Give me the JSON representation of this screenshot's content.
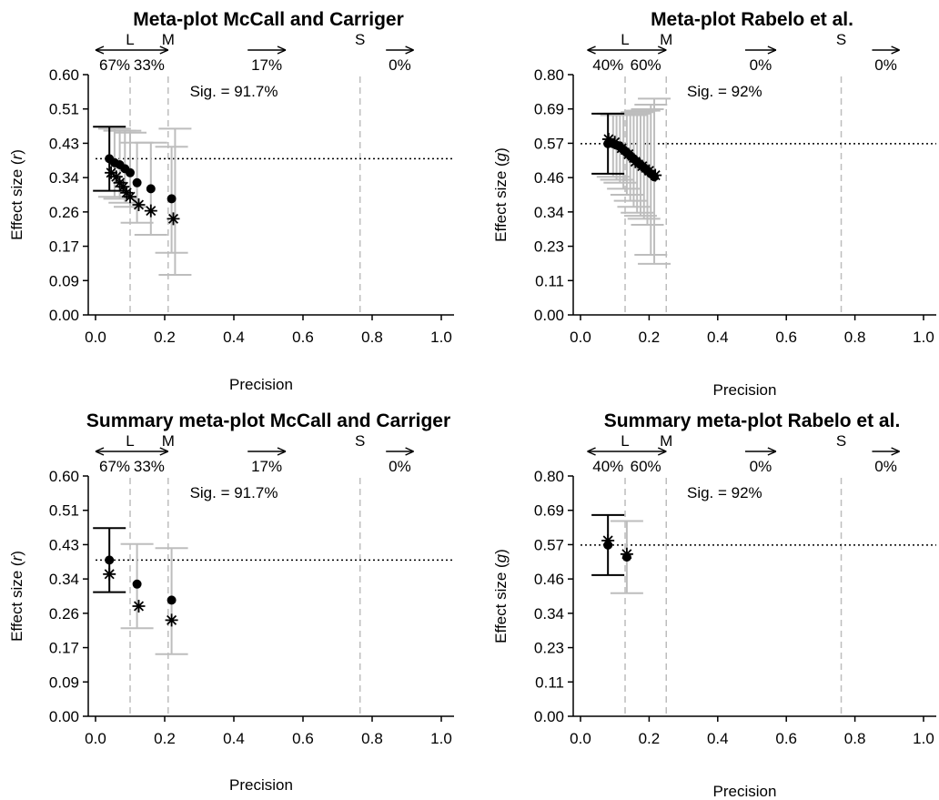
{
  "colors": {
    "axis": "#000000",
    "error_bar": "#bdbdbd",
    "primary_bar": "#000000",
    "region_line": "#bdbdbd",
    "ref_line": "#000000"
  },
  "chart_data": [
    {
      "type": "scatter",
      "title": "Meta-plot McCall and Carriger",
      "xlabel": "Precision",
      "ylabel_prefix": "Effect size (",
      "ylabel_var": "r",
      "ylabel_suffix": ")",
      "xlim": [
        0,
        1
      ],
      "ylim": [
        0,
        0.6
      ],
      "xticks": [
        "0.0",
        "0.2",
        "0.4",
        "0.6",
        "0.8",
        "1.0"
      ],
      "yticks": [
        "0.00",
        "0.09",
        "0.17",
        "0.26",
        "0.34",
        "0.43",
        "0.51",
        "0.60"
      ],
      "pooled_effect": 0.39,
      "region_lines": [
        {
          "label": "L",
          "x": 0.1
        },
        {
          "label": "M",
          "x": 0.21
        },
        {
          "label": "S",
          "x": 0.765
        }
      ],
      "arrow_groups": [
        {
          "dir": "both",
          "x_from": 0.0,
          "x_to": 0.21,
          "split": 0.1,
          "labels": [
            "67%",
            "33%"
          ]
        },
        {
          "dir": "right",
          "x_from": 0.44,
          "x_to": 0.55,
          "labels": [
            "17%"
          ]
        },
        {
          "dir": "right",
          "x_from": 0.84,
          "x_to": 0.92,
          "labels": [
            "0%"
          ]
        }
      ],
      "sig_text": "Sig. = 91.7%",
      "sig_x": 0.4,
      "series": [
        {
          "marker": "dot",
          "points": [
            {
              "x": 0.04,
              "y": 0.39,
              "lo": 0.31,
              "hi": 0.47,
              "primary": true
            },
            {
              "x": 0.055,
              "y": 0.38,
              "lo": 0.295,
              "hi": 0.465
            },
            {
              "x": 0.07,
              "y": 0.375,
              "lo": 0.29,
              "hi": 0.46
            },
            {
              "x": 0.085,
              "y": 0.365,
              "lo": 0.28,
              "hi": 0.46
            },
            {
              "x": 0.1,
              "y": 0.355,
              "lo": 0.27,
              "hi": 0.455
            },
            {
              "x": 0.12,
              "y": 0.33,
              "lo": 0.23,
              "hi": 0.43
            },
            {
              "x": 0.16,
              "y": 0.315,
              "lo": 0.2,
              "hi": 0.43
            },
            {
              "x": 0.22,
              "y": 0.29,
              "lo": 0.155,
              "hi": 0.42
            }
          ]
        },
        {
          "marker": "star",
          "points": [
            {
              "x": 0.045,
              "y": 0.355
            },
            {
              "x": 0.06,
              "y": 0.345
            },
            {
              "x": 0.07,
              "y": 0.33
            },
            {
              "x": 0.08,
              "y": 0.32
            },
            {
              "x": 0.09,
              "y": 0.305
            },
            {
              "x": 0.1,
              "y": 0.295
            },
            {
              "x": 0.125,
              "y": 0.275
            },
            {
              "x": 0.16,
              "y": 0.26
            },
            {
              "x": 0.225,
              "y": 0.24
            }
          ],
          "bars": [
            {
              "x": 0.23,
              "lo": 0.1,
              "hi": 0.465
            }
          ]
        }
      ]
    },
    {
      "type": "scatter",
      "title": "Meta-plot Rabelo et al.",
      "xlabel": "Precision",
      "ylabel_prefix": "Effect size (",
      "ylabel_var": "g",
      "ylabel_suffix": ")",
      "xlim": [
        0,
        1
      ],
      "ylim": [
        0,
        0.8
      ],
      "xticks": [
        "0.0",
        "0.2",
        "0.4",
        "0.6",
        "0.8",
        "1.0"
      ],
      "yticks": [
        "0.00",
        "0.11",
        "0.23",
        "0.34",
        "0.46",
        "0.57",
        "0.69",
        "0.80"
      ],
      "pooled_effect": 0.57,
      "region_lines": [
        {
          "label": "L",
          "x": 0.13
        },
        {
          "label": "M",
          "x": 0.25
        },
        {
          "label": "S",
          "x": 0.76
        }
      ],
      "arrow_groups": [
        {
          "dir": "both",
          "x_from": 0.02,
          "x_to": 0.25,
          "split": 0.13,
          "labels": [
            "40%",
            "60%"
          ]
        },
        {
          "dir": "right",
          "x_from": 0.48,
          "x_to": 0.57,
          "labels": [
            "0%"
          ]
        },
        {
          "dir": "right",
          "x_from": 0.85,
          "x_to": 0.93,
          "labels": [
            "0%"
          ]
        }
      ],
      "sig_text": "Sig. = 92%",
      "sig_x": 0.42,
      "series": [
        {
          "marker": "dot",
          "points": [
            {
              "x": 0.08,
              "y": 0.57,
              "lo": 0.47,
              "hi": 0.67,
              "primary": true
            },
            {
              "x": 0.095,
              "y": 0.57,
              "lo": 0.46,
              "hi": 0.67
            },
            {
              "x": 0.105,
              "y": 0.565,
              "lo": 0.45,
              "hi": 0.665
            },
            {
              "x": 0.115,
              "y": 0.56,
              "lo": 0.44,
              "hi": 0.67
            },
            {
              "x": 0.125,
              "y": 0.55,
              "lo": 0.42,
              "hi": 0.665
            },
            {
              "x": 0.135,
              "y": 0.54,
              "lo": 0.4,
              "hi": 0.67
            },
            {
              "x": 0.145,
              "y": 0.53,
              "lo": 0.38,
              "hi": 0.665
            },
            {
              "x": 0.155,
              "y": 0.52,
              "lo": 0.36,
              "hi": 0.67
            },
            {
              "x": 0.165,
              "y": 0.51,
              "lo": 0.34,
              "hi": 0.675
            },
            {
              "x": 0.175,
              "y": 0.5,
              "lo": 0.33,
              "hi": 0.68
            },
            {
              "x": 0.185,
              "y": 0.49,
              "lo": 0.32,
              "hi": 0.68
            },
            {
              "x": 0.195,
              "y": 0.48,
              "lo": 0.3,
              "hi": 0.685
            },
            {
              "x": 0.205,
              "y": 0.47,
              "lo": 0.2,
              "hi": 0.7
            },
            {
              "x": 0.215,
              "y": 0.46,
              "lo": 0.17,
              "hi": 0.72
            }
          ]
        },
        {
          "marker": "star",
          "points": [
            {
              "x": 0.082,
              "y": 0.585
            },
            {
              "x": 0.1,
              "y": 0.575
            },
            {
              "x": 0.12,
              "y": 0.555
            },
            {
              "x": 0.14,
              "y": 0.535
            },
            {
              "x": 0.16,
              "y": 0.51
            },
            {
              "x": 0.18,
              "y": 0.495
            },
            {
              "x": 0.2,
              "y": 0.48
            },
            {
              "x": 0.218,
              "y": 0.465
            }
          ],
          "bars": []
        }
      ]
    },
    {
      "type": "scatter",
      "title": "Summary meta-plot McCall and Carriger",
      "xlabel": "Precision",
      "ylabel_prefix": "Effect size (",
      "ylabel_var": "r",
      "ylabel_suffix": ")",
      "xlim": [
        0,
        1
      ],
      "ylim": [
        0,
        0.6
      ],
      "xticks": [
        "0.0",
        "0.2",
        "0.4",
        "0.6",
        "0.8",
        "1.0"
      ],
      "yticks": [
        "0.00",
        "0.09",
        "0.17",
        "0.26",
        "0.34",
        "0.43",
        "0.51",
        "0.60"
      ],
      "pooled_effect": 0.39,
      "region_lines": [
        {
          "label": "L",
          "x": 0.1
        },
        {
          "label": "M",
          "x": 0.21
        },
        {
          "label": "S",
          "x": 0.765
        }
      ],
      "arrow_groups": [
        {
          "dir": "both",
          "x_from": 0.0,
          "x_to": 0.21,
          "split": 0.1,
          "labels": [
            "67%",
            "33%"
          ]
        },
        {
          "dir": "right",
          "x_from": 0.44,
          "x_to": 0.55,
          "labels": [
            "17%"
          ]
        },
        {
          "dir": "right",
          "x_from": 0.84,
          "x_to": 0.92,
          "labels": [
            "0%"
          ]
        }
      ],
      "sig_text": "Sig. = 91.7%",
      "sig_x": 0.4,
      "series": [
        {
          "marker": "dot",
          "points": [
            {
              "x": 0.04,
              "y": 0.39,
              "lo": 0.31,
              "hi": 0.47,
              "primary": true
            },
            {
              "x": 0.12,
              "y": 0.33,
              "lo": 0.22,
              "hi": 0.43
            },
            {
              "x": 0.22,
              "y": 0.29,
              "lo": 0.155,
              "hi": 0.42
            }
          ]
        },
        {
          "marker": "star",
          "points": [
            {
              "x": 0.04,
              "y": 0.355
            },
            {
              "x": 0.125,
              "y": 0.275
            },
            {
              "x": 0.22,
              "y": 0.24
            }
          ],
          "bars": []
        }
      ]
    },
    {
      "type": "scatter",
      "title": "Summary meta-plot Rabelo et al.",
      "xlabel": "Precision",
      "ylabel_prefix": "Effect size (",
      "ylabel_var": "g",
      "ylabel_suffix": ")",
      "xlim": [
        0,
        1
      ],
      "ylim": [
        0,
        0.8
      ],
      "xticks": [
        "0.0",
        "0.2",
        "0.4",
        "0.6",
        "0.8",
        "1.0"
      ],
      "yticks": [
        "0.00",
        "0.11",
        "0.23",
        "0.34",
        "0.46",
        "0.57",
        "0.69",
        "0.80"
      ],
      "pooled_effect": 0.57,
      "region_lines": [
        {
          "label": "L",
          "x": 0.13
        },
        {
          "label": "M",
          "x": 0.25
        },
        {
          "label": "S",
          "x": 0.76
        }
      ],
      "arrow_groups": [
        {
          "dir": "both",
          "x_from": 0.02,
          "x_to": 0.25,
          "split": 0.13,
          "labels": [
            "40%",
            "60%"
          ]
        },
        {
          "dir": "right",
          "x_from": 0.48,
          "x_to": 0.57,
          "labels": [
            "0%"
          ]
        },
        {
          "dir": "right",
          "x_from": 0.85,
          "x_to": 0.93,
          "labels": [
            "0%"
          ]
        }
      ],
      "sig_text": "Sig. = 92%",
      "sig_x": 0.42,
      "series": [
        {
          "marker": "dot",
          "points": [
            {
              "x": 0.08,
              "y": 0.57,
              "lo": 0.47,
              "hi": 0.67,
              "primary": true
            },
            {
              "x": 0.135,
              "y": 0.53,
              "lo": 0.41,
              "hi": 0.65
            }
          ]
        },
        {
          "marker": "star",
          "points": [
            {
              "x": 0.08,
              "y": 0.585
            },
            {
              "x": 0.135,
              "y": 0.54
            }
          ],
          "bars": []
        }
      ]
    }
  ]
}
